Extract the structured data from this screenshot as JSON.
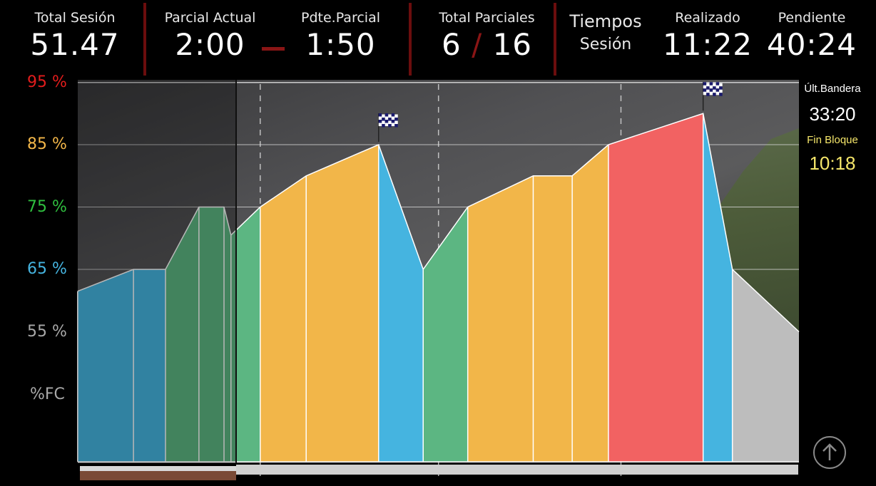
{
  "header": {
    "total_sesion": {
      "label": "Total Sesión",
      "value": "51.47"
    },
    "parcial_actual": {
      "label": "Parcial Actual",
      "value": "2:00"
    },
    "pdte_parcial": {
      "label": "Pdte.Parcial",
      "value": "1:50"
    },
    "total_parciales": {
      "label": "Total Parciales",
      "done": "6",
      "separator": "/",
      "total": "16"
    },
    "tiempos": {
      "label1": "Tiempos",
      "label2": "Sesión"
    },
    "realizado": {
      "label": "Realizado",
      "value": "11:22"
    },
    "pendiente": {
      "label": "Pendiente",
      "value": "40:24"
    }
  },
  "side": {
    "ult_bandera_label": "Últ.Bandera",
    "ult_bandera_value": "33:20",
    "fin_bloque_label": "Fin Bloque",
    "fin_bloque_value": "10:18"
  },
  "colors": {
    "blue": "#45b4e0",
    "green": "#5cb682",
    "orange": "#f2b649",
    "red": "#f26262",
    "gray": "#bdbdbd",
    "header_sep": "#6b0d0d"
  },
  "chart_data": {
    "type": "area",
    "ylabel": "%FC",
    "yticks": [
      {
        "label": "95 %",
        "value": 95,
        "color": "#e21c1c"
      },
      {
        "label": "85 %",
        "value": 85,
        "color": "#f2b649"
      },
      {
        "label": "75 %",
        "value": 75,
        "color": "#2fbf3f"
      },
      {
        "label": "65 %",
        "value": 65,
        "color": "#45b4e0"
      },
      {
        "label": "55 %",
        "value": 55,
        "color": "#a8a8a8"
      }
    ],
    "ylim": [
      30,
      97
    ],
    "xlim": [
      0,
      51.78
    ],
    "current_time": 11.37,
    "flag_times": [
      21.6,
      44.9
    ],
    "segments": [
      {
        "zone": "blue",
        "x": [
          0,
          4.0,
          6.3
        ],
        "y": [
          61.5,
          65,
          65
        ]
      },
      {
        "zone": "green",
        "x": [
          6.3,
          8.7,
          10.5,
          11.0
        ],
        "y": [
          65,
          75,
          75,
          70.5
        ]
      },
      {
        "zone": "green",
        "x": [
          11.0,
          13.1
        ],
        "y": [
          70.5,
          75
        ]
      },
      {
        "zone": "orange",
        "x": [
          13.1,
          16.4,
          21.6
        ],
        "y": [
          75,
          80,
          85
        ]
      },
      {
        "zone": "blue",
        "x": [
          21.6,
          24.8
        ],
        "y": [
          85,
          65
        ]
      },
      {
        "zone": "green",
        "x": [
          24.8,
          28.0
        ],
        "y": [
          65,
          75
        ]
      },
      {
        "zone": "orange",
        "x": [
          28.0,
          32.7,
          35.5,
          38.1
        ],
        "y": [
          75,
          80,
          80,
          85
        ]
      },
      {
        "zone": "red",
        "x": [
          38.1,
          44.9
        ],
        "y": [
          85,
          90
        ]
      },
      {
        "zone": "blue",
        "x": [
          44.9,
          47.0
        ],
        "y": [
          90,
          65
        ]
      },
      {
        "zone": "gray",
        "x": [
          47.0,
          51.78
        ],
        "y": [
          65,
          55
        ]
      }
    ],
    "dividers": [
      4.0,
      6.3,
      8.7,
      10.5,
      11.0,
      13.1,
      16.4,
      21.6,
      24.8,
      28.0,
      32.7,
      35.5,
      38.1,
      44.9,
      47.0
    ],
    "dashed_markers": [
      13.1,
      25.9,
      39.0
    ]
  }
}
